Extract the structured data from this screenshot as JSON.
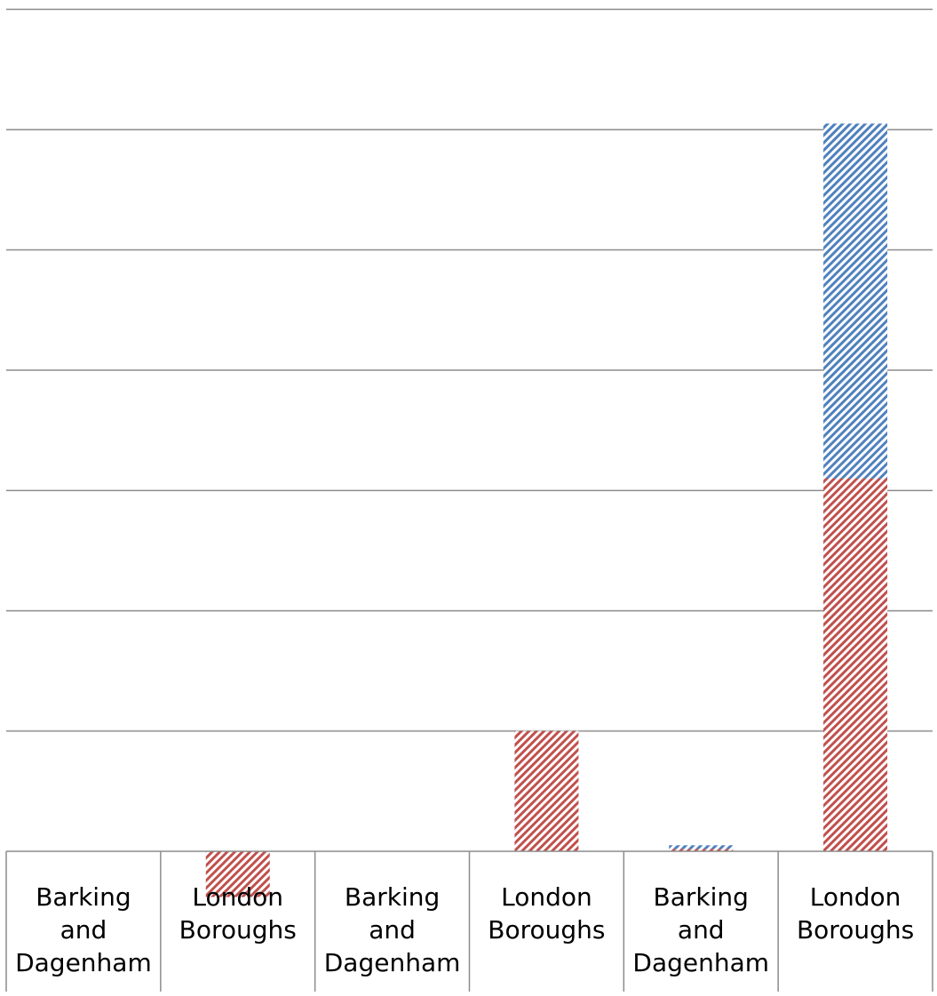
{
  "chart_data": {
    "type": "bar",
    "stacked": true,
    "title": "",
    "xlabel": "",
    "ylabel": "",
    "grid": true,
    "legend": "none",
    "ylim": [
      -0.4,
      7
    ],
    "categories": [
      [
        "Barking",
        "and",
        "Dagenham"
      ],
      [
        "London",
        "Boroughs"
      ],
      [
        "Barking",
        "and",
        "Dagenham"
      ],
      [
        "London",
        "Boroughs"
      ],
      [
        "Barking",
        "and",
        "Dagenham"
      ],
      [
        "London",
        "Boroughs"
      ]
    ],
    "series": [
      {
        "color": "#c0504d",
        "pattern": "diagonal-hatch",
        "values": [
          0,
          -0.38,
          0,
          1.0,
          0.02,
          3.1
        ]
      },
      {
        "color": "#4f81bd",
        "pattern": "diagonal-hatch",
        "values": [
          0,
          0,
          0,
          0,
          0.03,
          2.95
        ]
      }
    ]
  }
}
